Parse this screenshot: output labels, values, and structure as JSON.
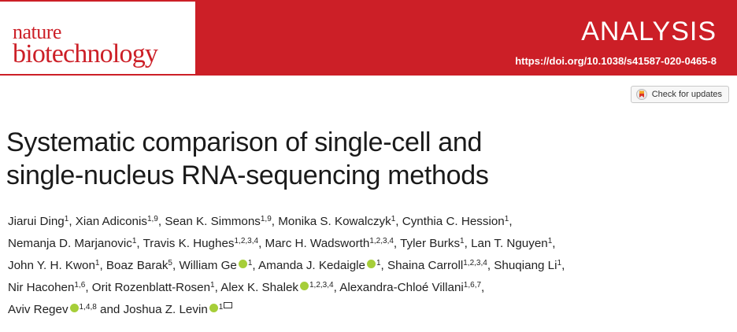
{
  "header": {
    "logo_line1": "nature",
    "logo_line2": "biotechnology",
    "article_type": "ANALYSIS",
    "doi": "https://doi.org/10.1038/s41587-020-0465-8",
    "brand_color": "#cc1f27"
  },
  "check_updates": {
    "label": "Check for updates"
  },
  "title": {
    "line1": "Systematic comparison of single-cell and",
    "line2": "single-nucleus RNA-sequencing methods"
  },
  "authors": [
    {
      "name": "Jiarui Ding",
      "sup": "1",
      "orcid": false,
      "mail": false,
      "sep": ", "
    },
    {
      "name": "Xian Adiconis",
      "sup": "1,9",
      "orcid": false,
      "mail": false,
      "sep": ", "
    },
    {
      "name": "Sean K. Simmons",
      "sup": "1,9",
      "orcid": false,
      "mail": false,
      "sep": ", "
    },
    {
      "name": "Monika S. Kowalczyk",
      "sup": "1",
      "orcid": false,
      "mail": false,
      "sep": ", "
    },
    {
      "name": "Cynthia C. Hession",
      "sup": "1",
      "orcid": false,
      "mail": false,
      "sep": ","
    },
    {
      "name": "Nemanja D. Marjanovic",
      "sup": "1",
      "orcid": false,
      "mail": false,
      "sep": ", "
    },
    {
      "name": "Travis K. Hughes",
      "sup": "1,2,3,4",
      "orcid": false,
      "mail": false,
      "sep": ", "
    },
    {
      "name": "Marc H. Wadsworth",
      "sup": "1,2,3,4",
      "orcid": false,
      "mail": false,
      "sep": ", "
    },
    {
      "name": "Tyler Burks",
      "sup": "1",
      "orcid": false,
      "mail": false,
      "sep": ", "
    },
    {
      "name": "Lan T. Nguyen",
      "sup": "1",
      "orcid": false,
      "mail": false,
      "sep": ","
    },
    {
      "name": "John Y. H. Kwon",
      "sup": "1",
      "orcid": false,
      "mail": false,
      "sep": ", "
    },
    {
      "name": "Boaz Barak",
      "sup": "5",
      "orcid": false,
      "mail": false,
      "sep": ", "
    },
    {
      "name": "William Ge",
      "sup": "1",
      "orcid": true,
      "mail": false,
      "sep": ", "
    },
    {
      "name": "Amanda J. Kedaigle",
      "sup": "1",
      "orcid": true,
      "mail": false,
      "sep": ", "
    },
    {
      "name": "Shaina Carroll",
      "sup": "1,2,3,4",
      "orcid": false,
      "mail": false,
      "sep": ", "
    },
    {
      "name": "Shuqiang Li",
      "sup": "1",
      "orcid": false,
      "mail": false,
      "sep": ","
    },
    {
      "name": "Nir Hacohen",
      "sup": "1,6",
      "orcid": false,
      "mail": false,
      "sep": ", "
    },
    {
      "name": "Orit Rozenblatt-Rosen",
      "sup": "1",
      "orcid": false,
      "mail": false,
      "sep": ", "
    },
    {
      "name": "Alex K. Shalek",
      "sup": "1,2,3,4",
      "orcid": true,
      "mail": false,
      "sep": ", "
    },
    {
      "name": "Alexandra-Chloé Villani",
      "sup": "1,6,7",
      "orcid": false,
      "mail": false,
      "sep": ","
    },
    {
      "name": "Aviv Regev",
      "sup": "1,4,8",
      "orcid": true,
      "mail": false,
      "sep": " and "
    },
    {
      "name": "Joshua Z. Levin",
      "sup": "1",
      "orcid": true,
      "mail": true,
      "sep": ""
    }
  ],
  "author_lines": [
    [
      0,
      1,
      2,
      3,
      4
    ],
    [
      5,
      6,
      7,
      8,
      9
    ],
    [
      10,
      11,
      12,
      13,
      14,
      15
    ],
    [
      16,
      17,
      18,
      19
    ],
    [
      20,
      21
    ]
  ]
}
